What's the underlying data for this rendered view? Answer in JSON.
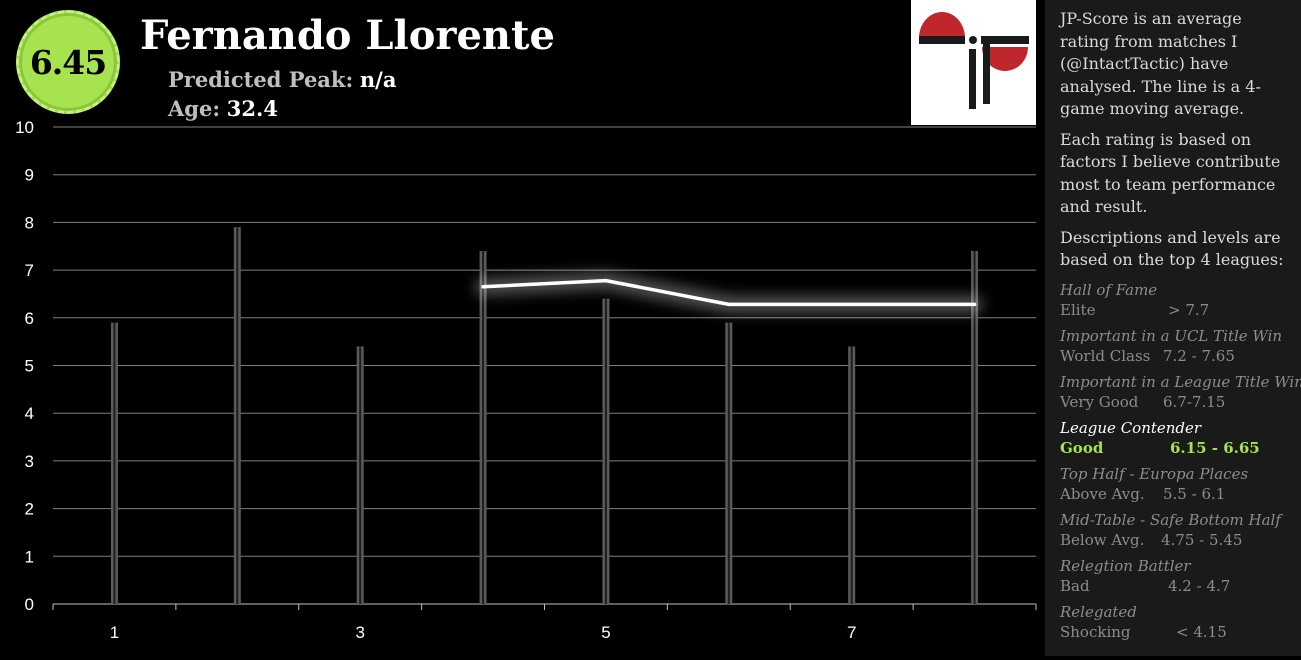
{
  "player": {
    "score": "6.45",
    "name": "Fernando Llorente",
    "peak_label": "Predicted Peak:",
    "peak_value": "n/a",
    "age_label": "Age:",
    "age_value": "32.4"
  },
  "logo": {
    "icon": "jp-logo"
  },
  "colors": {
    "accent": "#a6e34e",
    "bar": "#5a5a5a",
    "line": "#ffffff",
    "grid": "#7f7f7f",
    "sidebar_bg": "#1a1a1a"
  },
  "chart_data": {
    "type": "bar",
    "x_ticks": [
      "1",
      "3",
      "5",
      "7"
    ],
    "y_ticks": [
      "0",
      "1",
      "2",
      "3",
      "4",
      "5",
      "6",
      "7",
      "8",
      "9",
      "10"
    ],
    "ylim": [
      0,
      10
    ],
    "categories": [
      1,
      2,
      3,
      4,
      5,
      6,
      7,
      8
    ],
    "series": [
      {
        "type": "bar",
        "values": [
          5.9,
          7.9,
          5.4,
          7.4,
          6.4,
          5.9,
          5.4,
          7.4
        ]
      },
      {
        "type": "line",
        "values": [
          null,
          null,
          null,
          6.65,
          6.78,
          6.28,
          6.28,
          6.28
        ]
      }
    ],
    "grid": true
  },
  "sidebar": {
    "intro": "JP-Score is an average rating from matches I (@IntactTactic) have analysed. The line is a 4-game moving average.",
    "basis": "Each rating is based on factors I believe contribute most to team performance and result.",
    "levels_intro": "Descriptions and levels are based on the top 4 leagues:",
    "tiers": [
      {
        "description": "Hall of Fame",
        "level": "Elite",
        "range": "> 7.7"
      },
      {
        "description": "Important in a UCL Title Win",
        "level": "World Class",
        "range": "7.2 - 7.65"
      },
      {
        "description": "Important in a League Title Win",
        "level": "Very Good",
        "range": "6.7-7.15"
      },
      {
        "description": "League Contender",
        "level": "Good",
        "range": "6.15 - 6.65"
      },
      {
        "description": "Top Half - Europa Places",
        "level": "Above Avg.",
        "range": "5.5 - 6.1"
      },
      {
        "description": "Mid-Table - Safe Bottom Half",
        "level": "Below Avg.",
        "range": "4.75 - 5.45"
      },
      {
        "description": "Relegtion Battler",
        "level": "Bad",
        "range": "4.2 - 4.7"
      },
      {
        "description": "Relegated",
        "level": "Shocking",
        "range": "< 4.15"
      }
    ]
  }
}
